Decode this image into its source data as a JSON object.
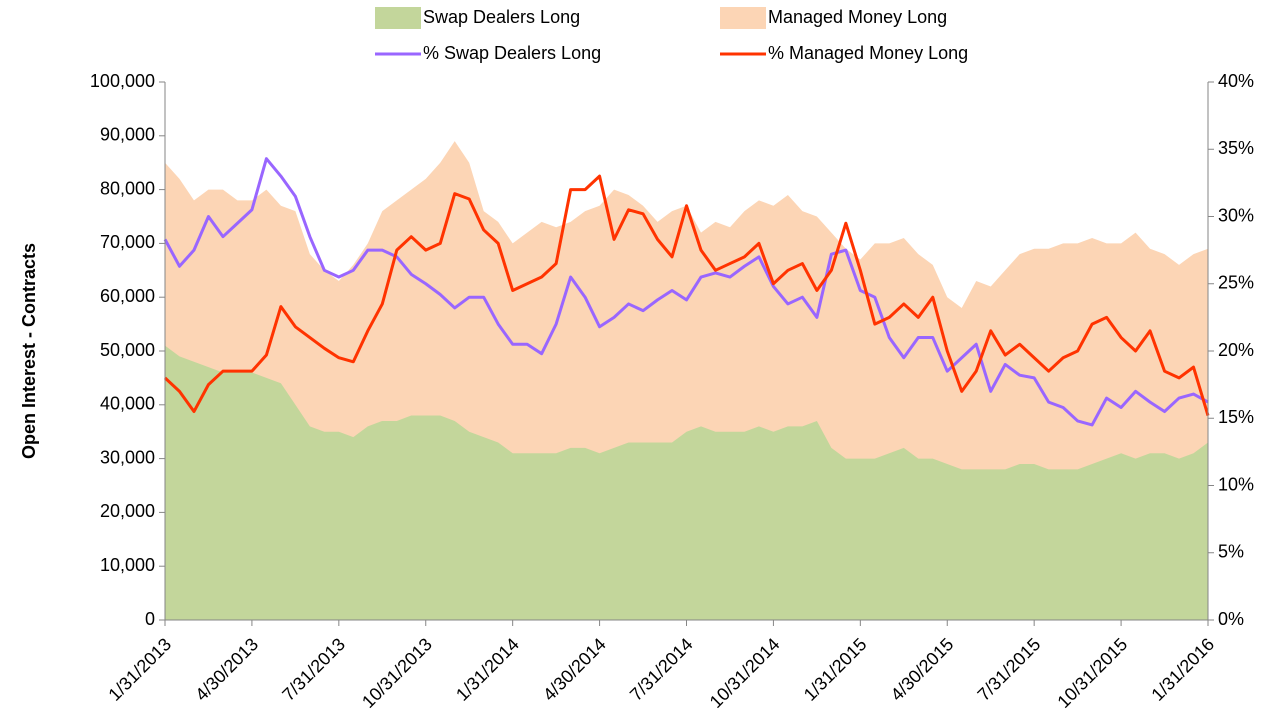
{
  "chart_data": {
    "type": "area",
    "y_label": "Open Interest - Contracts",
    "categories": [
      "1/31/2013",
      null,
      null,
      null,
      null,
      null,
      "4/30/2013",
      null,
      null,
      null,
      null,
      null,
      "7/31/2013",
      null,
      null,
      null,
      null,
      null,
      "10/31/2013",
      null,
      null,
      null,
      null,
      null,
      "1/31/2014",
      null,
      null,
      null,
      null,
      null,
      "4/30/2014",
      null,
      null,
      null,
      null,
      null,
      "7/31/2014",
      null,
      null,
      null,
      null,
      null,
      "10/31/2014",
      null,
      null,
      null,
      null,
      null,
      "1/31/2015",
      null,
      null,
      null,
      null,
      null,
      "4/30/2015",
      null,
      null,
      null,
      null,
      null,
      "7/31/2015",
      null,
      null,
      null,
      null,
      null,
      "10/31/2015",
      null,
      null,
      null,
      null,
      null,
      "1/31/2016"
    ],
    "ylim": [
      0,
      100000
    ],
    "yticks": [
      0,
      {
        "value": 10000,
        "label": "10,000"
      },
      {
        "value": 20000,
        "label": "20,000"
      },
      {
        "value": 30000,
        "label": "30,000"
      },
      {
        "value": 40000,
        "label": "40,000"
      },
      {
        "value": 50000,
        "label": "50,000"
      },
      {
        "value": 60000,
        "label": "60,000"
      },
      {
        "value": 70000,
        "label": "70,000"
      },
      {
        "value": 80000,
        "label": "80,000"
      },
      {
        "value": 90000,
        "label": "90,000"
      },
      {
        "value": 100000,
        "label": "100,000"
      }
    ],
    "y2lim": [
      0,
      40
    ],
    "y2ticks": [
      {
        "value": 0,
        "label": "0%"
      },
      {
        "value": 5,
        "label": "5%"
      },
      {
        "value": 10,
        "label": "10%"
      },
      {
        "value": 15,
        "label": "15%"
      },
      {
        "value": 20,
        "label": "20%"
      },
      {
        "value": 25,
        "label": "25%"
      },
      {
        "value": 30,
        "label": "30%"
      },
      {
        "value": 35,
        "label": "35%"
      },
      {
        "value": 40,
        "label": "40%"
      }
    ],
    "legend": "top",
    "series": [
      {
        "name": "Swap Dealers Long",
        "type": "area",
        "color": "#c3d69b",
        "values": [
          51000,
          49000,
          48000,
          47000,
          46000,
          46000,
          46000,
          45000,
          44000,
          40000,
          36000,
          35000,
          35000,
          34000,
          36000,
          37000,
          37000,
          38000,
          38000,
          38000,
          37000,
          35000,
          34000,
          33000,
          31000,
          31000,
          31000,
          31000,
          32000,
          32000,
          31000,
          32000,
          33000,
          33000,
          33000,
          33000,
          35000,
          36000,
          35000,
          35000,
          35000,
          36000,
          35000,
          36000,
          36000,
          37000,
          32000,
          30000,
          30000,
          30000,
          31000,
          32000,
          30000,
          30000,
          29000,
          28000,
          28000,
          28000,
          28000,
          29000,
          29000,
          28000,
          28000,
          28000,
          29000,
          30000,
          31000,
          30000,
          31000,
          31000,
          30000,
          31000,
          33000
        ]
      },
      {
        "name": "Managed Money Long",
        "type": "area",
        "color": "#fcd5b5",
        "values": [
          85000,
          82000,
          78000,
          80000,
          80000,
          78000,
          78000,
          80000,
          77000,
          76000,
          68000,
          65000,
          63000,
          66000,
          70000,
          76000,
          78000,
          80000,
          82000,
          85000,
          89000,
          85000,
          76000,
          74000,
          70000,
          72000,
          74000,
          73000,
          74000,
          76000,
          77000,
          80000,
          79000,
          77000,
          74000,
          76000,
          77000,
          72000,
          74000,
          73000,
          76000,
          78000,
          77000,
          79000,
          76000,
          75000,
          72000,
          69000,
          67000,
          70000,
          70000,
          71000,
          68000,
          66000,
          60000,
          58000,
          63000,
          62000,
          65000,
          68000,
          69000,
          69000,
          70000,
          70000,
          71000,
          70000,
          70000,
          72000,
          69000,
          68000,
          66000,
          68000,
          69000
        ]
      },
      {
        "name": "% Swap Dealers Long",
        "type": "line",
        "axis": "y2",
        "color": "#9966ff",
        "values": [
          28.3,
          26.3,
          27.5,
          30,
          28.5,
          29.5,
          30.5,
          34.3,
          33,
          31.5,
          28.5,
          26,
          25.5,
          26,
          27.5,
          27.5,
          27,
          25.7,
          25,
          24.2,
          23.2,
          24,
          24,
          22,
          20.5,
          20.5,
          19.8,
          22,
          25.5,
          24,
          21.8,
          22.5,
          23.5,
          23,
          23.8,
          24.5,
          23.8,
          25.5,
          25.8,
          25.5,
          26.3,
          27,
          24.8,
          23.5,
          24,
          22.5,
          27.2,
          27.5,
          24.5,
          24,
          21,
          19.5,
          21,
          21,
          18.5,
          19.5,
          20.5,
          17,
          19,
          18.2,
          18,
          16.2,
          15.8,
          14.8,
          14.5,
          16.5,
          15.8,
          17,
          16.2,
          15.5,
          16.5,
          16.8,
          16.2
        ]
      },
      {
        "name": "% Managed Money Long",
        "type": "line",
        "axis": "y2",
        "color": "#ff3300",
        "values": [
          18,
          17,
          15.5,
          17.5,
          18.5,
          18.5,
          18.5,
          19.7,
          23.3,
          21.8,
          21,
          20.2,
          19.5,
          19.2,
          21.5,
          23.5,
          27.5,
          28.5,
          27.5,
          28,
          31.7,
          31.3,
          29,
          28,
          24.5,
          25,
          25.5,
          26.5,
          32,
          32,
          33,
          28.3,
          30.5,
          30.2,
          28.3,
          27,
          30.8,
          27.5,
          26,
          26.5,
          27,
          28,
          25,
          26,
          26.5,
          24.5,
          26,
          29.5,
          26,
          22,
          22.5,
          23.5,
          22.5,
          24,
          20,
          17,
          18.5,
          21.5,
          19.7,
          20.5,
          19.5,
          18.5,
          19.5,
          20,
          22,
          22.5,
          21,
          20,
          21.5,
          18.5,
          18,
          18.8,
          15.2
        ]
      }
    ]
  }
}
